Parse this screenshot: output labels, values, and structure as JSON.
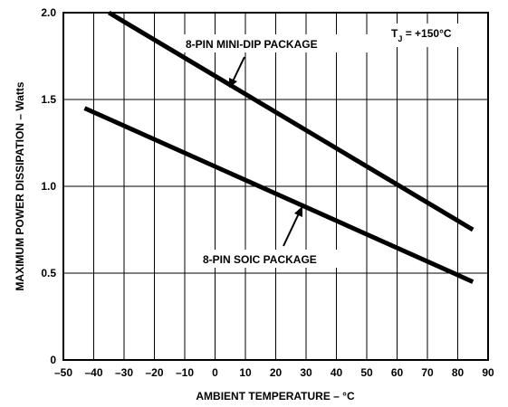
{
  "chart_data": {
    "type": "line",
    "xlabel": "AMBIENT TEMPERATURE – °C",
    "ylabel": "MAXIMUM POWER DISSIPATION – Watts",
    "xlim": [
      -50,
      90
    ],
    "ylim": [
      0,
      2.0
    ],
    "x_ticks": [
      "–50",
      "–40",
      "–30",
      "–20",
      "–10",
      "0",
      "10",
      "20",
      "30",
      "40",
      "50",
      "60",
      "70",
      "80",
      "90"
    ],
    "y_ticks": [
      "0",
      "0.5",
      "1.0",
      "1.5",
      "2.0"
    ],
    "grid": true,
    "series": [
      {
        "name": "8-PIN MINI-DIP PACKAGE",
        "x": [
          -35,
          85
        ],
        "y": [
          2.0,
          0.75
        ]
      },
      {
        "name": "8-PIN SOIC PACKAGE",
        "x": [
          -43,
          85
        ],
        "y": [
          1.45,
          0.45
        ]
      }
    ],
    "condition_label": {
      "main": "T",
      "sub": "J",
      "rest": " = +150°C"
    }
  }
}
